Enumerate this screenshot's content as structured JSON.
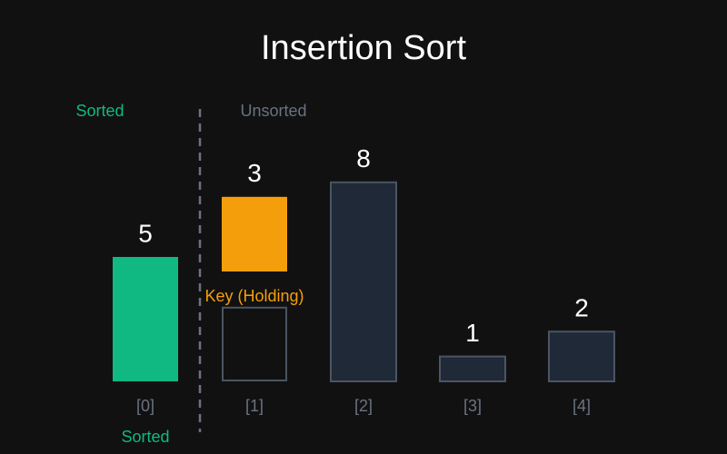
{
  "chart_data": {
    "type": "bar",
    "title": "Insertion Sort",
    "categories": [
      "[0]",
      "[1]",
      "[2]",
      "[3]",
      "[4]"
    ],
    "values": [
      5,
      3,
      8,
      1,
      2
    ],
    "colors": [
      "#10b981",
      "#f59e0b",
      "#1f2937",
      "#1f2937",
      "#1f2937"
    ],
    "sorted_label": "Sorted",
    "unsorted_label": "Unsorted",
    "key_label": "Key (Holding)",
    "footer_label": "Sorted"
  }
}
